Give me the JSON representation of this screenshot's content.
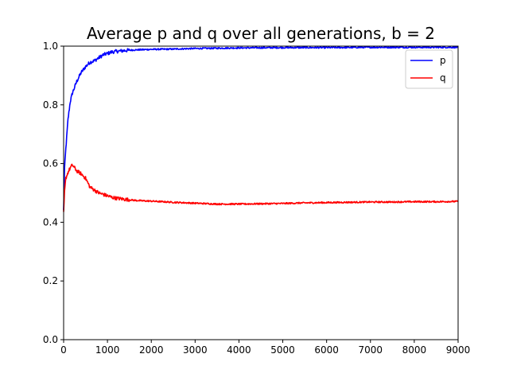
{
  "chart_data": {
    "type": "line",
    "title": "Average p and q over all generations, b = 2",
    "xlabel": "",
    "ylabel": "",
    "xlim": [
      0,
      9000
    ],
    "ylim": [
      0.0,
      1.0
    ],
    "x_ticks": [
      0,
      1000,
      2000,
      3000,
      4000,
      5000,
      6000,
      7000,
      8000,
      9000
    ],
    "x_tick_labels": [
      "0",
      "1000",
      "2000",
      "3000",
      "4000",
      "5000",
      "6000",
      "7000",
      "8000",
      "9000"
    ],
    "y_ticks": [
      0.0,
      0.2,
      0.4,
      0.6,
      0.8,
      1.0
    ],
    "y_tick_labels": [
      "0.0",
      "0.2",
      "0.4",
      "0.6",
      "0.8",
      "1.0"
    ],
    "grid": false,
    "legend_position": "top-right",
    "series": [
      {
        "name": "p",
        "color": "#0000ff",
        "x": [
          0,
          20,
          50,
          100,
          150,
          200,
          300,
          400,
          500,
          600,
          700,
          800,
          900,
          1000,
          1100,
          1200,
          1400,
          1600,
          1800,
          2000,
          2500,
          3000,
          3500,
          4000,
          5000,
          6000,
          7000,
          8000,
          9000
        ],
        "y": [
          0.44,
          0.58,
          0.65,
          0.75,
          0.81,
          0.84,
          0.88,
          0.91,
          0.93,
          0.945,
          0.95,
          0.96,
          0.97,
          0.975,
          0.98,
          0.982,
          0.985,
          0.987,
          0.988,
          0.989,
          0.99,
          0.992,
          0.993,
          0.994,
          0.995,
          0.995,
          0.996,
          0.996,
          0.996
        ]
      },
      {
        "name": "q",
        "color": "#ff0000",
        "x": [
          0,
          20,
          50,
          100,
          150,
          200,
          250,
          300,
          400,
          500,
          550,
          600,
          700,
          800,
          900,
          1000,
          1100,
          1200,
          1400,
          1600,
          1800,
          2000,
          2500,
          3000,
          3500,
          4000,
          4500,
          5000,
          5500,
          6000,
          6500,
          7000,
          7500,
          8000,
          8500,
          9000
        ],
        "y": [
          0.43,
          0.5,
          0.55,
          0.57,
          0.585,
          0.595,
          0.585,
          0.575,
          0.565,
          0.55,
          0.535,
          0.52,
          0.51,
          0.5,
          0.495,
          0.49,
          0.485,
          0.482,
          0.478,
          0.475,
          0.473,
          0.472,
          0.468,
          0.465,
          0.462,
          0.462,
          0.463,
          0.464,
          0.466,
          0.467,
          0.468,
          0.469,
          0.469,
          0.47,
          0.47,
          0.471
        ]
      }
    ]
  }
}
